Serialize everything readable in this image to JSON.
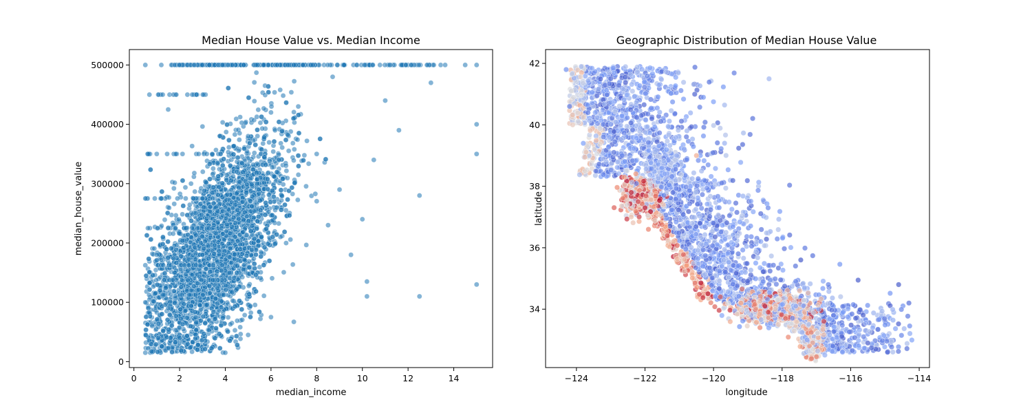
{
  "chart_data": [
    {
      "type": "scatter",
      "title": "Median House Value vs. Median Income",
      "xlabel": "median_income",
      "ylabel": "median_house_value",
      "xlim": [
        -0.2,
        15.7
      ],
      "ylim": [
        -10000,
        526000
      ],
      "xticks": [
        0,
        2,
        4,
        6,
        8,
        10,
        12,
        14
      ],
      "yticks": [
        0,
        100000,
        200000,
        300000,
        400000,
        500000
      ],
      "xtick_labels": [
        "0",
        "2",
        "4",
        "6",
        "8",
        "10",
        "12",
        "14"
      ],
      "ytick_labels": [
        "0",
        "100000",
        "200000",
        "300000",
        "400000",
        "500000"
      ],
      "grid": false,
      "point_color": "#1f77b4",
      "sample_points": [
        [
          0.5,
          15000
        ],
        [
          0.5,
          100000
        ],
        [
          0.5,
          162500
        ],
        [
          0.5,
          275000
        ],
        [
          0.5,
          500001
        ],
        [
          0.8,
          60000
        ],
        [
          1.0,
          180000
        ],
        [
          1.0,
          350000
        ],
        [
          1.2,
          500001
        ],
        [
          1.5,
          90000
        ],
        [
          1.5,
          425000
        ],
        [
          1.8,
          150000
        ],
        [
          2.0,
          40000
        ],
        [
          2.0,
          500001
        ],
        [
          2.5,
          120000
        ],
        [
          2.5,
          300000
        ],
        [
          3.0,
          180000
        ],
        [
          3.0,
          500001
        ],
        [
          3.5,
          230000
        ],
        [
          4.0,
          15000
        ],
        [
          4.0,
          260000
        ],
        [
          4.5,
          320000
        ],
        [
          5.0,
          45000
        ],
        [
          5.0,
          380000
        ],
        [
          6.0,
          75000
        ],
        [
          6.0,
          420000
        ],
        [
          7.0,
          67000
        ],
        [
          7.0,
          500001
        ],
        [
          8.0,
          350000
        ],
        [
          8.5,
          230000
        ],
        [
          9.0,
          290000
        ],
        [
          9.5,
          180000
        ],
        [
          10.0,
          240000
        ],
        [
          10.2,
          135000
        ],
        [
          10.2,
          110000
        ],
        [
          10.5,
          340000
        ],
        [
          11.0,
          440000
        ],
        [
          11.6,
          390000
        ],
        [
          12.5,
          280000
        ],
        [
          12.5,
          110000
        ],
        [
          13.0,
          470000
        ],
        [
          14.5,
          500001
        ],
        [
          15.0,
          500001
        ],
        [
          15.0,
          400000
        ],
        [
          15.0,
          350000
        ],
        [
          15.0,
          130000
        ]
      ]
    },
    {
      "type": "scatter",
      "title": "Geographic Distribution of Median House Value",
      "xlabel": "longitude",
      "ylabel": "latitude",
      "xlim": [
        -124.9,
        -113.7
      ],
      "ylim": [
        32.1,
        42.45
      ],
      "xticks": [
        -124,
        -122,
        -120,
        -118,
        -116,
        -114
      ],
      "yticks": [
        34,
        36,
        38,
        40,
        42
      ],
      "xtick_labels": [
        "−124",
        "−122",
        "−120",
        "−118",
        "−116",
        "−114"
      ],
      "ytick_labels": [
        "34",
        "36",
        "38",
        "40",
        "42"
      ],
      "grid": false,
      "colormap": "coolwarm",
      "hue": "median_house_value",
      "sample_points": [
        [
          -124.3,
          41.8,
          0.2
        ],
        [
          -124.2,
          40.6,
          0.15
        ],
        [
          -123.8,
          39.4,
          0.25
        ],
        [
          -123.0,
          41.5,
          0.1
        ],
        [
          -122.6,
          38.3,
          0.75
        ],
        [
          -122.4,
          37.8,
          0.95
        ],
        [
          -122.2,
          37.5,
          0.9
        ],
        [
          -122.0,
          37.3,
          0.97
        ],
        [
          -121.9,
          36.6,
          0.8
        ],
        [
          -121.8,
          40.2,
          0.1
        ],
        [
          -121.5,
          38.6,
          0.3
        ],
        [
          -121.0,
          37.7,
          0.25
        ],
        [
          -120.5,
          39.0,
          0.7
        ],
        [
          -120.0,
          36.8,
          0.1
        ],
        [
          -119.8,
          34.4,
          0.85
        ],
        [
          -119.2,
          34.2,
          0.75
        ],
        [
          -118.5,
          34.1,
          0.97
        ],
        [
          -118.4,
          33.9,
          0.9
        ],
        [
          -118.2,
          34.0,
          0.6
        ],
        [
          -117.9,
          33.7,
          0.85
        ],
        [
          -117.6,
          34.1,
          0.3
        ],
        [
          -117.2,
          32.8,
          0.75
        ],
        [
          -117.1,
          32.7,
          0.5
        ],
        [
          -116.5,
          33.8,
          0.15
        ],
        [
          -115.5,
          32.9,
          0.05
        ],
        [
          -114.6,
          34.8,
          0.05
        ],
        [
          -114.3,
          34.2,
          0.1
        ]
      ]
    }
  ]
}
